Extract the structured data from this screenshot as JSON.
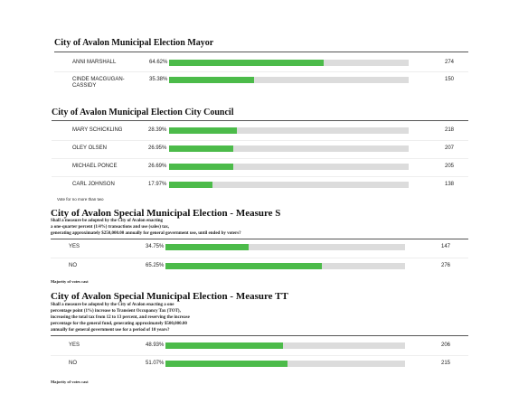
{
  "races": [
    {
      "title": "City of Avalon Municipal Election Mayor",
      "candidates": [
        {
          "name": "ANNI MARSHALL",
          "percent": 64.62,
          "percent_label": "64.62%",
          "votes": 274
        },
        {
          "name": "CINDE MACGUGAN-CASSIDY",
          "percent": 35.38,
          "percent_label": "35.38%",
          "votes": 150
        }
      ]
    },
    {
      "title": "City of Avalon Municipal Election City Council",
      "candidates": [
        {
          "name": "MARY SCHICKLING",
          "percent": 28.39,
          "percent_label": "28.39%",
          "votes": 218
        },
        {
          "name": "OLEY OLSEN",
          "percent": 26.95,
          "percent_label": "26.95%",
          "votes": 207
        },
        {
          "name": "MICHAEL PONCE",
          "percent": 26.69,
          "percent_label": "26.69%",
          "votes": 205
        },
        {
          "name": "CARL JOHNSON",
          "percent": 17.97,
          "percent_label": "17.97%",
          "votes": 138
        }
      ],
      "note": "Vote for no more than two"
    },
    {
      "title": "City of Avalon Special Municipal Election - Measure S",
      "description": [
        "Shall a measure be adopted by the City of Avalon enacting",
        "a one-quarter percent (1/4%) transactions and use (sales) tax,",
        "generating approximately $250,000.00 annually for general government use, until ended by voters?"
      ],
      "candidates": [
        {
          "name": "YES",
          "percent": 34.75,
          "percent_label": "34.75%",
          "votes": 147
        },
        {
          "name": "NO",
          "percent": 65.25,
          "percent_label": "65.25%",
          "votes": 276
        }
      ],
      "note": "Majority of votes cast"
    },
    {
      "title": "City of Avalon Special Municipal Election - Measure TT",
      "description": [
        "Shall a measure be adopted by the City of Avalon enacting a one",
        "percentage point (1%) increase to Transient Occupancy Tax (TOT),",
        "increasing the total tax from 12 to 13 percent, and reserving the increase",
        "percentage for the general fund, generating approximately $500,000.00",
        "annually for general government use for a period of 10 years?"
      ],
      "candidates": [
        {
          "name": "YES",
          "percent": 48.93,
          "percent_label": "48.93%",
          "votes": 206
        },
        {
          "name": "NO",
          "percent": 51.07,
          "percent_label": "51.07%",
          "votes": 215
        }
      ],
      "note": "Majority of votes cast"
    }
  ]
}
